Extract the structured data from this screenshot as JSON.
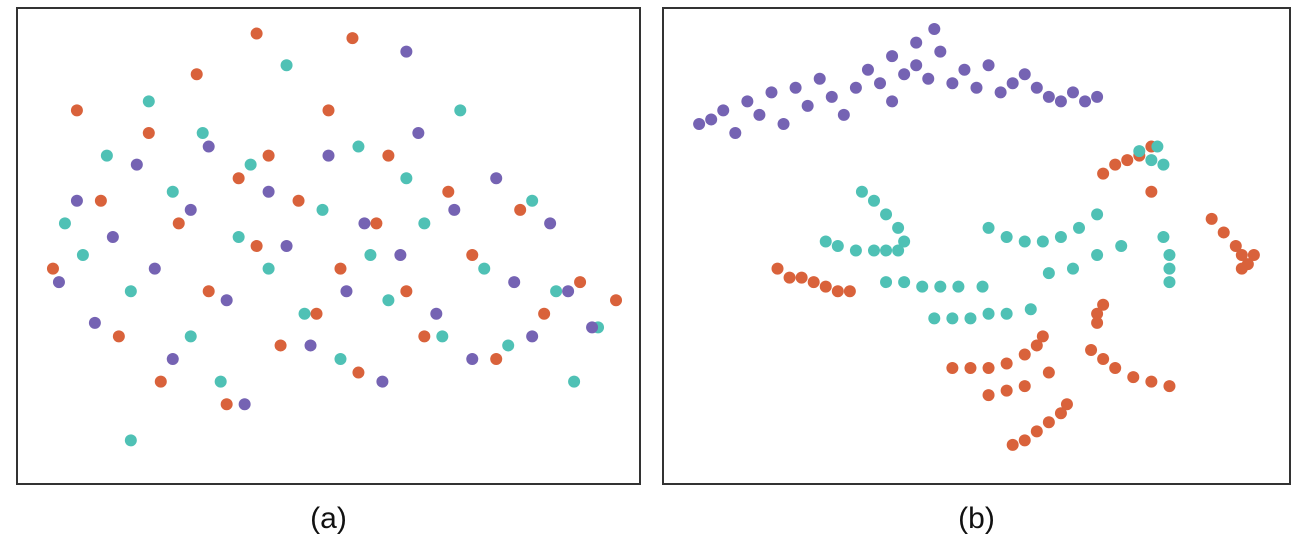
{
  "chart_data": [
    {
      "type": "scatter",
      "caption": "(a)",
      "xlim": [
        0,
        100
      ],
      "ylim": [
        0,
        100
      ],
      "series": [
        {
          "color": "#d9623b",
          "x": [
            4,
            8,
            12,
            15,
            20,
            22,
            25,
            28,
            30,
            33,
            35,
            38,
            40,
            42,
            45,
            48,
            50,
            52,
            55,
            58,
            60,
            63,
            66,
            70,
            74,
            78,
            82,
            86,
            92,
            98,
            38,
            54
          ],
          "values": [
            45,
            80,
            60,
            30,
            75,
            20,
            55,
            88,
            40,
            15,
            65,
            50,
            70,
            28,
            60,
            35,
            80,
            45,
            22,
            55,
            70,
            40,
            30,
            62,
            48,
            25,
            58,
            35,
            42,
            38,
            97,
            96
          ]
        },
        {
          "color": "#4fc1b5",
          "x": [
            6,
            9,
            13,
            17,
            20,
            24,
            27,
            29,
            32,
            35,
            37,
            40,
            43,
            46,
            49,
            52,
            55,
            57,
            60,
            63,
            66,
            69,
            72,
            76,
            80,
            84,
            88,
            91,
            95,
            17
          ],
          "values": [
            55,
            48,
            70,
            40,
            82,
            62,
            30,
            75,
            20,
            52,
            68,
            45,
            90,
            35,
            58,
            25,
            72,
            48,
            38,
            65,
            55,
            30,
            80,
            45,
            28,
            60,
            40,
            20,
            32,
            7
          ]
        },
        {
          "color": "#7563b3",
          "x": [
            5,
            8,
            11,
            14,
            18,
            21,
            24,
            27,
            30,
            33,
            36,
            40,
            43,
            47,
            50,
            53,
            56,
            59,
            62,
            65,
            68,
            71,
            74,
            78,
            81,
            84,
            87,
            90,
            94,
            63
          ],
          "values": [
            42,
            60,
            33,
            52,
            68,
            45,
            25,
            58,
            72,
            38,
            15,
            62,
            50,
            28,
            70,
            40,
            55,
            20,
            48,
            75,
            35,
            58,
            25,
            65,
            42,
            30,
            55,
            40,
            32,
            93
          ]
        }
      ]
    },
    {
      "type": "scatter",
      "caption": "(b)",
      "xlim": [
        0,
        100
      ],
      "ylim": [
        0,
        100
      ],
      "series": [
        {
          "color": "#d9623b",
          "x": [
            17,
            19,
            21,
            23,
            25,
            27,
            29,
            71,
            73,
            75,
            77,
            79,
            79,
            89,
            91,
            93,
            94,
            95,
            96,
            94,
            46,
            49,
            52,
            55,
            58,
            60,
            61,
            52,
            55,
            58,
            62,
            56,
            58,
            60,
            62,
            64,
            65,
            70,
            70,
            71,
            69,
            71,
            73,
            76,
            79,
            82
          ],
          "values": [
            45,
            43,
            43,
            42,
            41,
            40,
            40,
            66,
            68,
            69,
            70,
            72,
            62,
            56,
            53,
            50,
            48,
            46,
            48,
            45,
            23,
            23,
            23,
            24,
            26,
            28,
            30,
            17,
            18,
            19,
            22,
            6,
            7,
            9,
            11,
            13,
            15,
            33,
            35,
            37,
            27,
            25,
            23,
            21,
            20,
            19
          ]
        },
        {
          "color": "#4fc1b5",
          "x": [
            25,
            27,
            30,
            33,
            35,
            37,
            31,
            33,
            35,
            37,
            38,
            35,
            38,
            41,
            44,
            47,
            51,
            43,
            46,
            49,
            52,
            55,
            59,
            52,
            55,
            58,
            61,
            64,
            67,
            70,
            77,
            79,
            80,
            81,
            81,
            82,
            82,
            82,
            62,
            66,
            70,
            74
          ],
          "values": [
            51,
            50,
            49,
            49,
            49,
            49,
            62,
            60,
            57,
            54,
            51,
            42,
            42,
            41,
            41,
            41,
            41,
            34,
            34,
            34,
            35,
            35,
            36,
            54,
            52,
            51,
            51,
            52,
            54,
            57,
            71,
            69,
            72,
            68,
            52,
            48,
            45,
            42,
            44,
            45,
            48,
            50
          ]
        },
        {
          "color": "#7563b3",
          "x": [
            4,
            6,
            8,
            10,
            12,
            14,
            16,
            18,
            20,
            22,
            24,
            26,
            28,
            30,
            32,
            34,
            36,
            38,
            40,
            42,
            44,
            46,
            48,
            50,
            52,
            54,
            56,
            58,
            60,
            62,
            64,
            66,
            68,
            70,
            36,
            40,
            43
          ],
          "values": [
            77,
            78,
            80,
            75,
            82,
            79,
            84,
            77,
            85,
            81,
            87,
            83,
            79,
            85,
            89,
            86,
            92,
            88,
            90,
            87,
            93,
            86,
            89,
            85,
            90,
            84,
            86,
            88,
            85,
            83,
            82,
            84,
            82,
            83,
            82,
            95,
            98
          ]
        }
      ]
    }
  ]
}
